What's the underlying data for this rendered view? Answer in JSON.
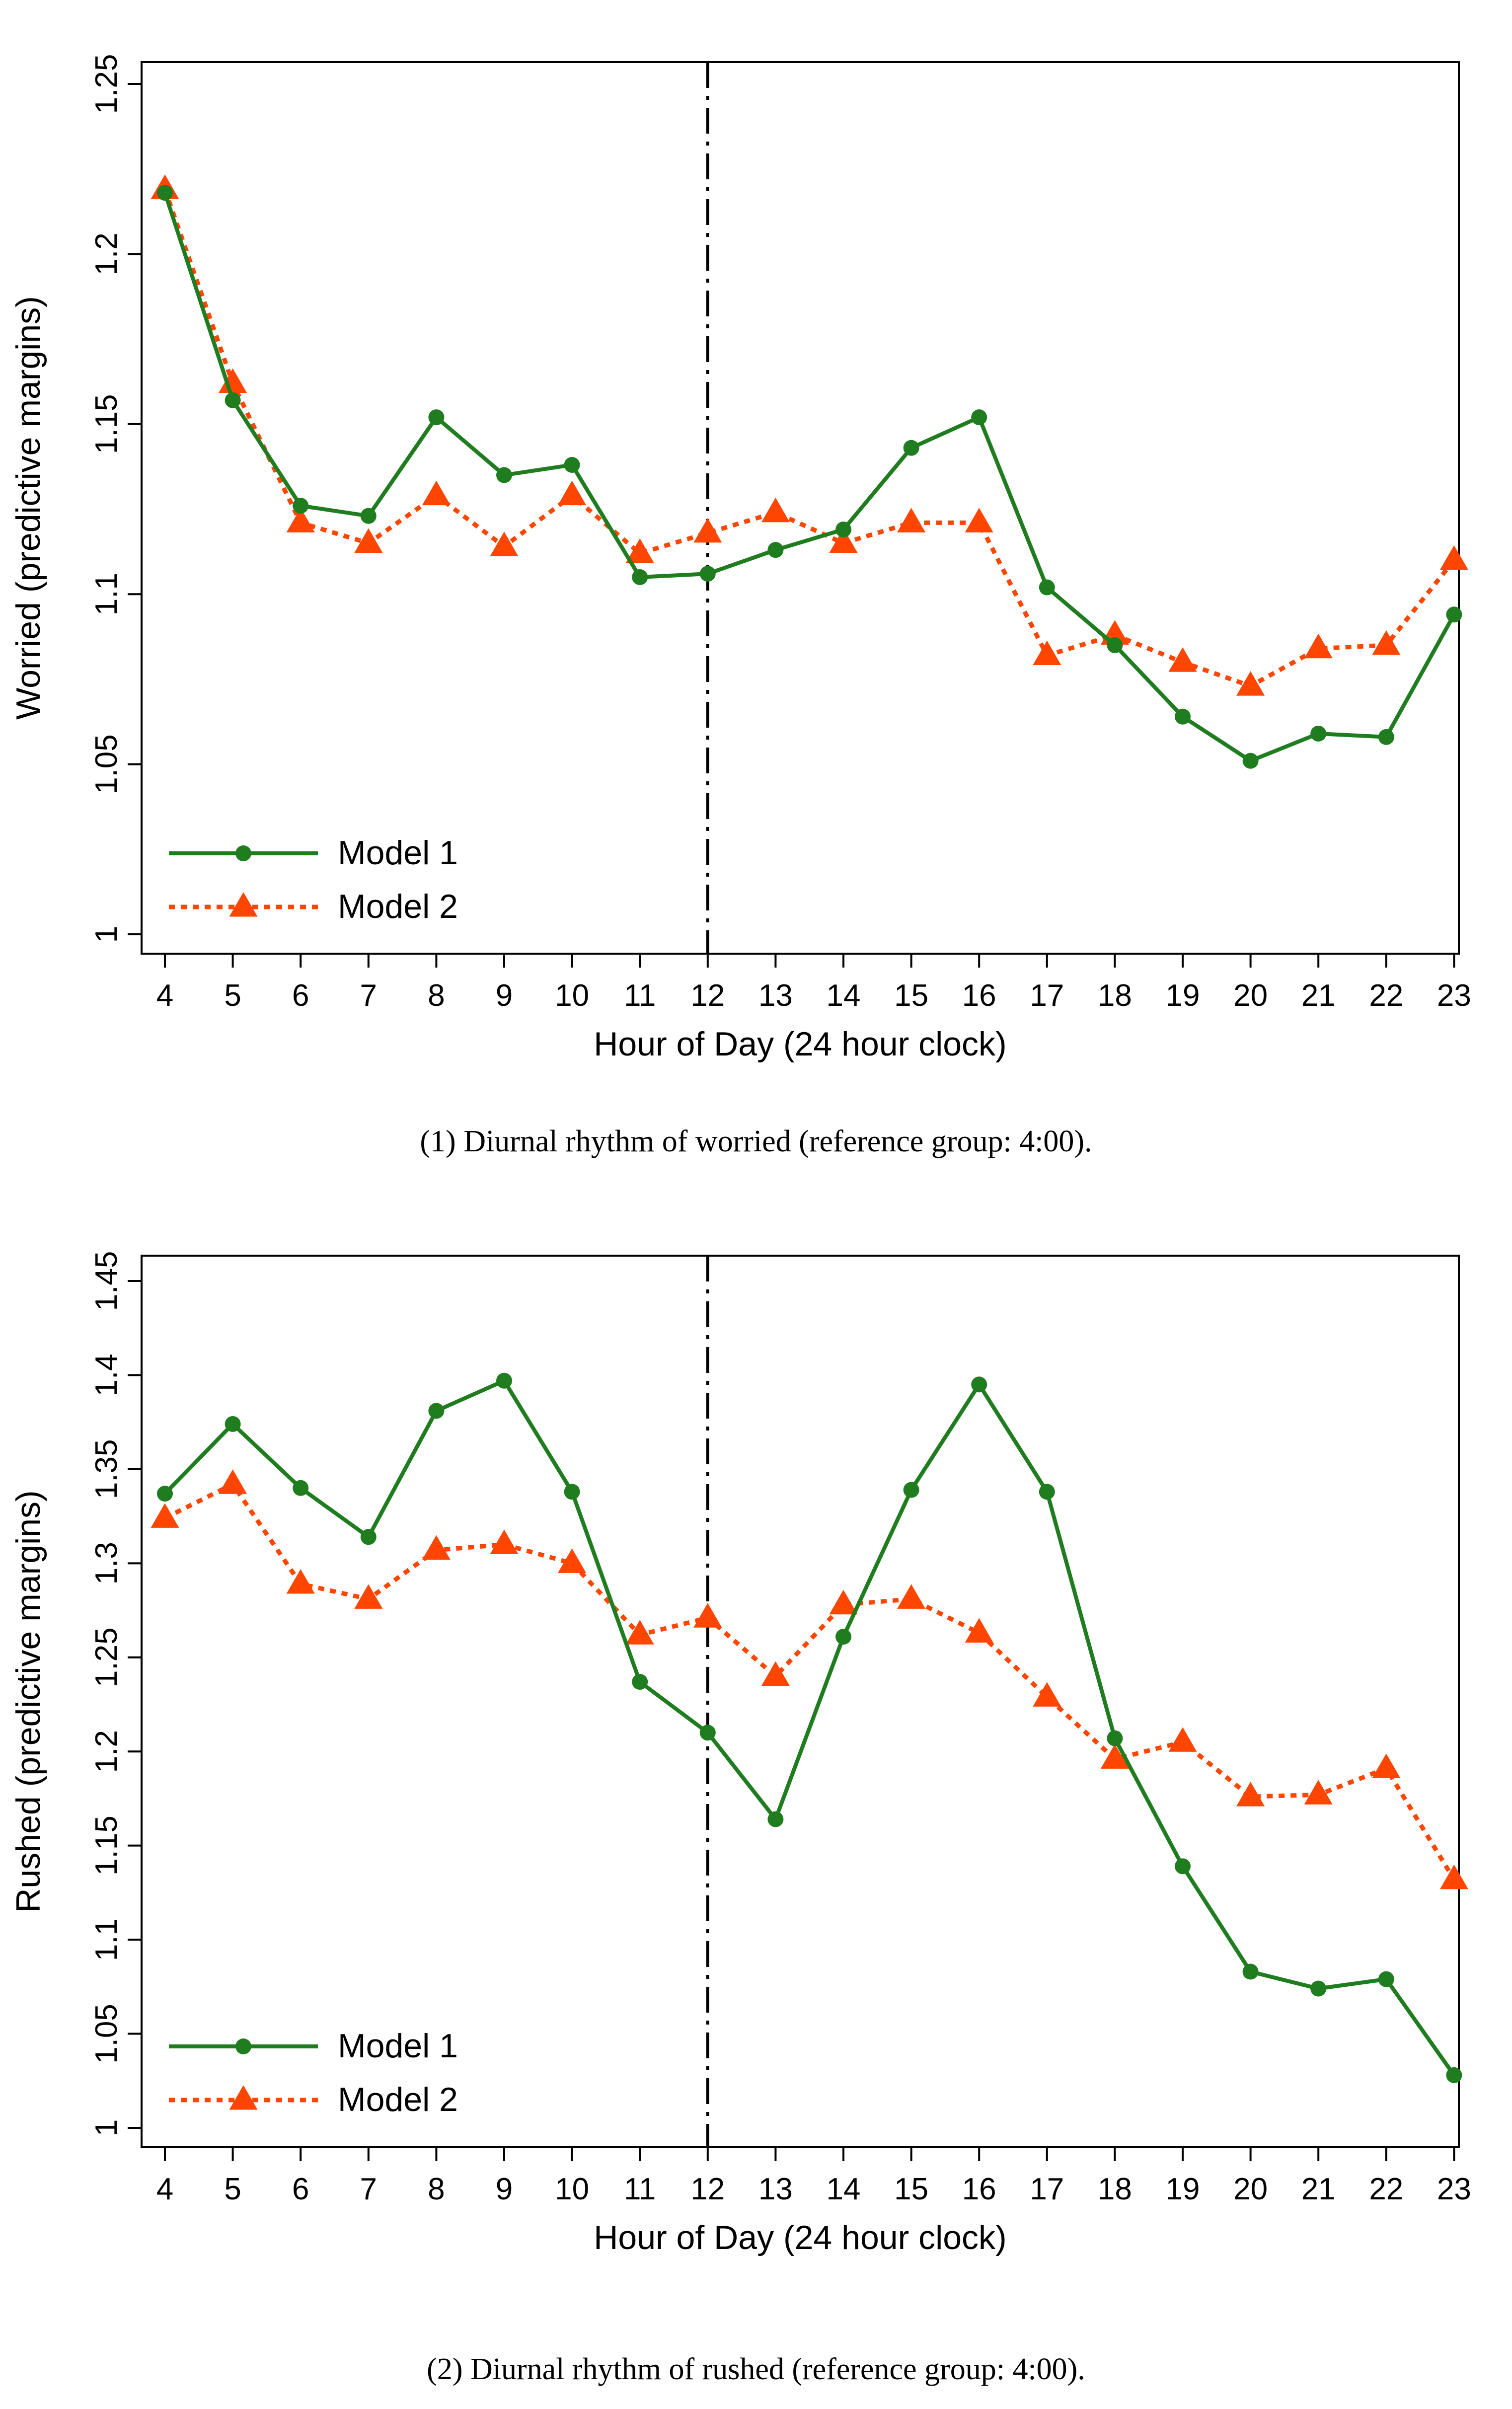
{
  "chart_data": [
    {
      "type": "line",
      "id": "worried",
      "categories": [
        "4",
        "5",
        "6",
        "7",
        "8",
        "9",
        "10",
        "11",
        "12",
        "13",
        "14",
        "15",
        "16",
        "17",
        "18",
        "19",
        "20",
        "21",
        "22",
        "23"
      ],
      "x": [
        4,
        5,
        6,
        7,
        8,
        9,
        10,
        11,
        12,
        13,
        14,
        15,
        16,
        17,
        18,
        19,
        20,
        21,
        22,
        23
      ],
      "series": [
        {
          "name": "Model 1",
          "color": "#1f7d1f",
          "marker": "circle",
          "line": "solid",
          "values": [
            1.218,
            1.157,
            1.126,
            1.123,
            1.152,
            1.135,
            1.138,
            1.105,
            1.106,
            1.113,
            1.119,
            1.143,
            1.152,
            1.102,
            1.085,
            1.064,
            1.051,
            1.059,
            1.058,
            1.094
          ]
        },
        {
          "name": "Model 2",
          "color": "#ff4500",
          "marker": "triangle",
          "line": "dotted",
          "values": [
            1.219,
            1.162,
            1.121,
            1.115,
            1.129,
            1.114,
            1.129,
            1.112,
            1.118,
            1.124,
            1.115,
            1.121,
            1.121,
            1.082,
            1.088,
            1.08,
            1.073,
            1.084,
            1.085,
            1.11
          ]
        }
      ],
      "xlabel": "Hour of Day (24 hour clock)",
      "ylabel": "Worried (predictive margins)",
      "ylim": [
        1,
        1.25
      ],
      "yticks": [
        "1",
        "1.05",
        "1.1",
        "1.15",
        "1.2",
        "1.25"
      ],
      "reference_line_x": 12,
      "grid": false,
      "legend_position": "bottom-left",
      "caption": "(1)   Diurnal rhythm of worried (reference group: 4:00)."
    },
    {
      "type": "line",
      "id": "rushed",
      "categories": [
        "4",
        "5",
        "6",
        "7",
        "8",
        "9",
        "10",
        "11",
        "12",
        "13",
        "14",
        "15",
        "16",
        "17",
        "18",
        "19",
        "20",
        "21",
        "22",
        "23"
      ],
      "x": [
        4,
        5,
        6,
        7,
        8,
        9,
        10,
        11,
        12,
        13,
        14,
        15,
        16,
        17,
        18,
        19,
        20,
        21,
        22,
        23
      ],
      "series": [
        {
          "name": "Model 1",
          "color": "#1f7d1f",
          "marker": "circle",
          "line": "solid",
          "values": [
            1.337,
            1.374,
            1.34,
            1.314,
            1.381,
            1.397,
            1.338,
            1.237,
            1.21,
            1.164,
            1.261,
            1.339,
            1.395,
            1.338,
            1.207,
            1.139,
            1.083,
            1.074,
            1.079,
            1.028
          ]
        },
        {
          "name": "Model 2",
          "color": "#ff4500",
          "marker": "triangle",
          "line": "dotted",
          "values": [
            1.324,
            1.342,
            1.289,
            1.281,
            1.307,
            1.31,
            1.3,
            1.262,
            1.271,
            1.24,
            1.278,
            1.281,
            1.263,
            1.229,
            1.196,
            1.205,
            1.176,
            1.177,
            1.191,
            1.132
          ]
        }
      ],
      "xlabel": "Hour of Day (24 hour clock)",
      "ylabel": "Rushed (predictive margins)",
      "ylim": [
        1,
        1.45
      ],
      "yticks": [
        "1",
        "1.05",
        "1.1",
        "1.15",
        "1.2",
        "1.25",
        "1.3",
        "1.35",
        "1.4",
        "1.45"
      ],
      "reference_line_x": 12,
      "grid": false,
      "legend_position": "bottom-left",
      "caption": "(2)   Diurnal rhythm of rushed (reference group: 4:00)."
    }
  ]
}
